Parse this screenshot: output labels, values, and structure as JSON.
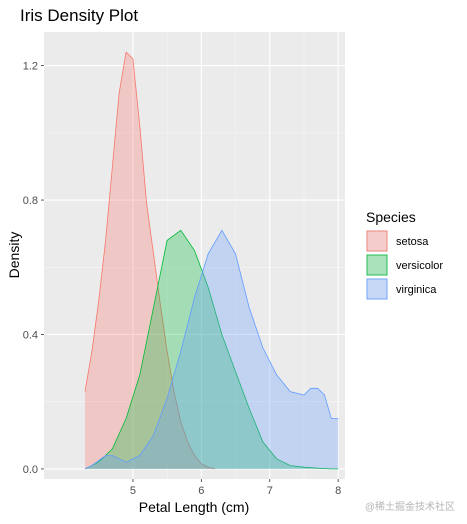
{
  "chart_data": {
    "type": "area",
    "title": "Iris Density Plot",
    "xlabel": "Petal Length (cm)",
    "ylabel": "Density",
    "xlim": [
      3.7,
      8.1
    ],
    "ylim": [
      -0.03,
      1.3
    ],
    "x_ticks": [
      5,
      6,
      7,
      8
    ],
    "y_ticks": [
      0.0,
      0.4,
      0.8,
      1.2
    ],
    "y_tick_labels": [
      "0.0",
      "0.4",
      "0.8",
      "1.2"
    ],
    "grid": true,
    "legend": {
      "title": "Species",
      "position": "right"
    },
    "series": [
      {
        "name": "setosa",
        "fill": "#F8766D",
        "x": [
          4.3,
          4.4,
          4.5,
          4.6,
          4.7,
          4.8,
          4.9,
          5.0,
          5.1,
          5.2,
          5.3,
          5.4,
          5.5,
          5.6,
          5.7,
          5.8,
          5.9,
          6.0,
          6.1,
          6.2
        ],
        "y": [
          0.23,
          0.35,
          0.5,
          0.68,
          0.9,
          1.12,
          1.24,
          1.22,
          1.02,
          0.79,
          0.64,
          0.49,
          0.35,
          0.23,
          0.14,
          0.08,
          0.04,
          0.015,
          0.005,
          0.0
        ]
      },
      {
        "name": "versicolor",
        "fill": "#00BA38",
        "x": [
          4.3,
          4.5,
          4.7,
          4.9,
          5.1,
          5.3,
          5.5,
          5.7,
          5.9,
          6.1,
          6.3,
          6.5,
          6.7,
          6.9,
          7.1,
          7.3,
          7.5,
          7.7,
          7.9,
          8.0
        ],
        "y": [
          0.0,
          0.02,
          0.06,
          0.15,
          0.28,
          0.48,
          0.68,
          0.71,
          0.65,
          0.54,
          0.4,
          0.29,
          0.18,
          0.08,
          0.03,
          0.01,
          0.005,
          0.002,
          0.0,
          0.0
        ]
      },
      {
        "name": "virginica",
        "fill": "#619CFF",
        "x": [
          4.3,
          4.4,
          4.5,
          4.6,
          4.7,
          4.9,
          5.1,
          5.3,
          5.5,
          5.7,
          5.9,
          6.1,
          6.3,
          6.5,
          6.7,
          6.9,
          7.1,
          7.3,
          7.5,
          7.6,
          7.7,
          7.8,
          7.9,
          8.0
        ],
        "y": [
          0.0,
          0.01,
          0.025,
          0.04,
          0.04,
          0.02,
          0.04,
          0.1,
          0.21,
          0.35,
          0.51,
          0.64,
          0.71,
          0.64,
          0.48,
          0.36,
          0.28,
          0.23,
          0.22,
          0.24,
          0.24,
          0.22,
          0.15,
          0.15
        ]
      }
    ]
  },
  "watermark": "@稀土掘金技术社区"
}
